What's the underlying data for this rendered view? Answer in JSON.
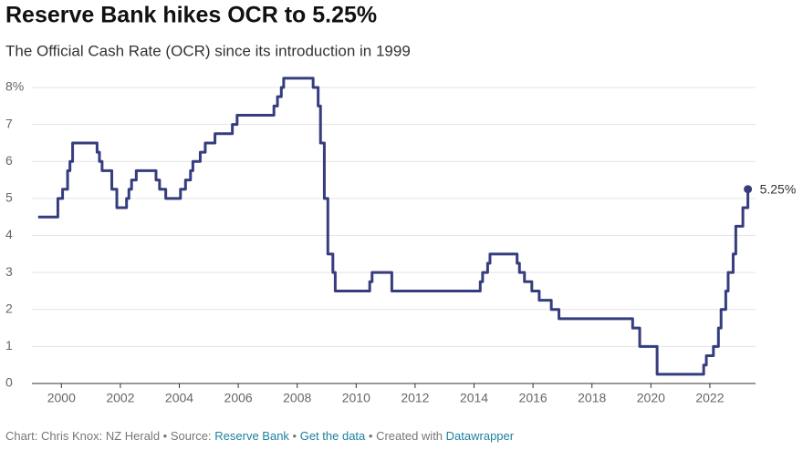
{
  "chart_data": {
    "type": "line",
    "step": true,
    "title": "Reserve Bank hikes OCR to 5.25%",
    "subtitle": "The Official Cash Rate (OCR) since its introduction in 1999",
    "footer": {
      "credit": "Chart: Chris Knox: NZ Herald",
      "source_label": "Source:",
      "source": "Reserve Bank",
      "get_data": "Get the data",
      "created": "Created with",
      "tool": "Datawrapper"
    },
    "xlim": [
      1999,
      2023.55
    ],
    "xticks": [
      2000,
      2002,
      2004,
      2006,
      2008,
      2010,
      2012,
      2014,
      2016,
      2018,
      2020,
      2022
    ],
    "ylim": [
      0,
      8
    ],
    "yticks": [
      0,
      1,
      2,
      3,
      4,
      5,
      6,
      7,
      {
        "value": 8,
        "label": "8%"
      }
    ],
    "grid": true,
    "series": [
      {
        "name": "OCR",
        "color": "#353d7e",
        "x": [
          1999.21,
          1999.88,
          2000.04,
          2000.21,
          2000.29,
          2000.38,
          2001.21,
          2001.29,
          2001.38,
          2001.71,
          2001.88,
          2002.21,
          2002.29,
          2002.38,
          2002.54,
          2003.21,
          2003.33,
          2003.54,
          2004.04,
          2004.21,
          2004.38,
          2004.46,
          2004.71,
          2004.88,
          2005.21,
          2005.8,
          2005.96,
          2007.21,
          2007.33,
          2007.46,
          2007.54,
          2008.54,
          2008.71,
          2008.79,
          2008.92,
          2009.04,
          2009.21,
          2009.29,
          2010.46,
          2010.54,
          2011.21,
          2014.21,
          2014.29,
          2014.46,
          2014.54,
          2015.46,
          2015.54,
          2015.71,
          2015.96,
          2016.21,
          2016.62,
          2016.88,
          2019.38,
          2019.62,
          2020.21,
          2021.79,
          2021.88,
          2022.12,
          2022.29,
          2022.38,
          2022.54,
          2022.62,
          2022.79,
          2022.88,
          2023.12,
          2023.29
        ],
        "values": [
          4.5,
          5.0,
          5.25,
          5.75,
          6.0,
          6.5,
          6.25,
          6.0,
          5.75,
          5.25,
          4.75,
          5.0,
          5.25,
          5.5,
          5.75,
          5.5,
          5.25,
          5.0,
          5.25,
          5.5,
          5.75,
          6.0,
          6.25,
          6.5,
          6.75,
          7.0,
          7.25,
          7.5,
          7.75,
          8.0,
          8.25,
          8.0,
          7.5,
          6.5,
          5.0,
          3.5,
          3.0,
          2.5,
          2.75,
          3.0,
          2.5,
          2.75,
          3.0,
          3.25,
          3.5,
          3.25,
          3.0,
          2.75,
          2.5,
          2.25,
          2.0,
          1.75,
          1.5,
          1.0,
          0.25,
          0.5,
          0.75,
          1.0,
          1.5,
          2.0,
          2.5,
          3.0,
          3.5,
          4.25,
          4.75,
          5.25
        ],
        "value_labels": [
          null,
          null,
          null,
          null,
          null,
          null,
          null,
          null,
          null,
          null,
          null,
          null,
          null,
          null,
          null,
          null,
          null,
          null,
          null,
          null,
          null,
          null,
          null,
          null,
          null,
          null,
          null,
          null,
          null,
          null,
          null,
          null,
          null,
          null,
          null,
          null,
          null,
          null,
          null,
          null,
          null,
          null,
          null,
          null,
          null,
          null,
          null,
          null,
          null,
          null,
          null,
          null,
          null,
          null,
          null,
          null,
          null,
          null,
          null,
          null,
          null,
          null,
          null,
          null,
          null,
          "5.25%"
        ]
      }
    ]
  }
}
